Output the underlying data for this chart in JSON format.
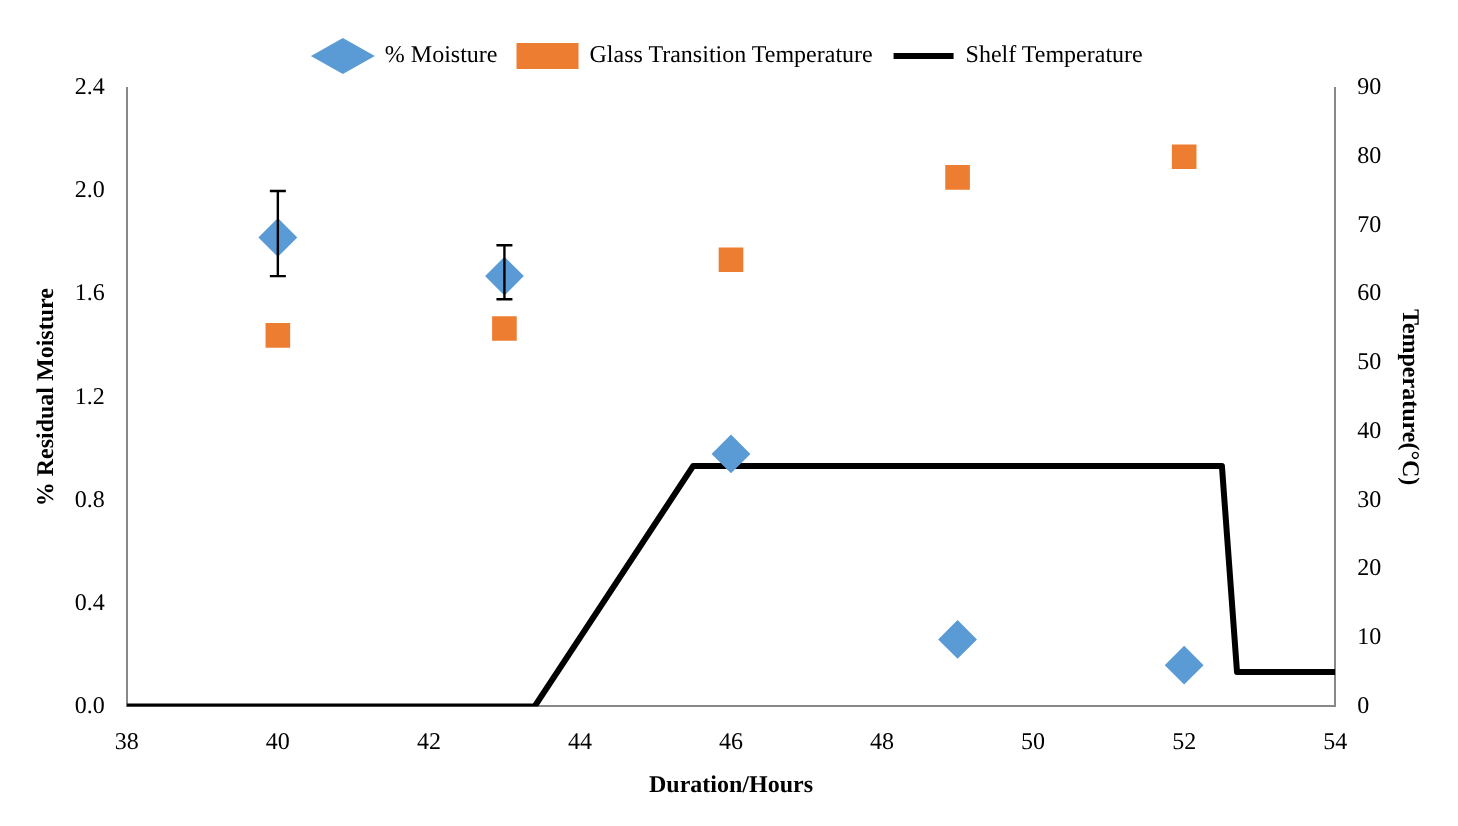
{
  "chart_data": {
    "type": "scatter",
    "xlabel": "Duration/Hours",
    "ylabel": "% Residual Moisture",
    "y2label": "Temperature(°C)",
    "legend": "top",
    "grid": false,
    "xlim": [
      38,
      54
    ],
    "xticks": [
      38,
      40,
      42,
      44,
      46,
      48,
      50,
      52,
      54
    ],
    "ylim": [
      0,
      2.4
    ],
    "yticks": [
      {
        "value": 0,
        "label": "0.0"
      },
      {
        "value": 0.4,
        "label": "0.4"
      },
      {
        "value": 0.8,
        "label": "0.8"
      },
      {
        "value": 1.2,
        "label": "1.2"
      },
      {
        "value": 1.6,
        "label": "1.6"
      },
      {
        "value": 2,
        "label": "2.0"
      },
      {
        "value": 2.4,
        "label": "2.4"
      }
    ],
    "y2lim": [
      0,
      90
    ],
    "y2ticks": [
      0,
      10,
      20,
      30,
      40,
      50,
      60,
      70,
      80,
      90
    ],
    "series": [
      {
        "name": "% Moisture",
        "type": "scatter",
        "marker": "diamond",
        "color": "#5b9bd5",
        "x": [
          40,
          43,
          46,
          49,
          52
        ],
        "values": [
          1.82,
          1.67,
          0.98,
          0.26,
          0.16
        ],
        "errors": [
          [
            1.67,
            2.0
          ],
          [
            1.58,
            1.79
          ],
          null,
          null,
          null
        ]
      },
      {
        "name": "Glass Transition Temperature",
        "type": "scatter",
        "marker": "square",
        "color": "#ed7d31",
        "axis": "y2",
        "x": [
          40,
          43,
          46,
          49,
          52
        ],
        "values": [
          54,
          55,
          65,
          77,
          80
        ]
      },
      {
        "name": "Shelf Temperature",
        "type": "line",
        "marker": "none",
        "line_style": "solid",
        "color": "#000000",
        "axis": "y2",
        "x": [
          38,
          43.4,
          45.5,
          52.5,
          52.7,
          54
        ],
        "values": [
          0,
          0,
          35,
          35,
          5,
          5
        ]
      }
    ]
  }
}
